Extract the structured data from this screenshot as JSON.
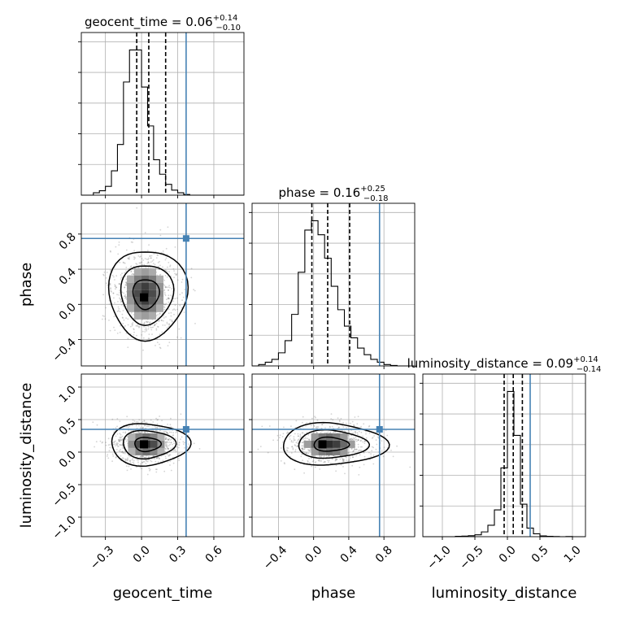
{
  "chart_data": {
    "type": "corner",
    "truth_color": "#4682b4",
    "parameters": [
      {
        "name": "geocent_time",
        "xlim": [
          -0.5,
          0.85
        ],
        "ticks": [
          -0.3,
          0.0,
          0.3,
          0.6
        ],
        "tick_labels": [
          "−0.3",
          "0.0",
          "0.3",
          "0.6"
        ],
        "truth": 0.37,
        "quantiles": [
          -0.04,
          0.06,
          0.2
        ],
        "title": {
          "prefix": "geocent_time = ",
          "value": "0.06",
          "plus": "+0.14",
          "minus": "−0.10"
        },
        "hist_edges": [
          -0.5,
          -0.45,
          -0.4,
          -0.35,
          -0.3,
          -0.25,
          -0.2,
          -0.15,
          -0.1,
          -0.05,
          0.0,
          0.05,
          0.1,
          0.15,
          0.2,
          0.25,
          0.3,
          0.35,
          0.4,
          0.45,
          0.5,
          0.55,
          0.6,
          0.65,
          0.7,
          0.75,
          0.8,
          0.85
        ],
        "hist_counts": [
          0,
          0,
          0.7,
          1.3,
          2.6,
          7.2,
          15,
          33.5,
          43,
          43,
          32,
          20.5,
          10.5,
          6.2,
          3.2,
          1.5,
          0.7,
          0.2,
          0,
          0,
          0,
          0,
          0,
          0,
          0,
          0,
          0
        ]
      },
      {
        "name": "phase",
        "xlim": [
          -0.7,
          1.15
        ],
        "ticks": [
          -0.4,
          0.0,
          0.4,
          0.8
        ],
        "tick_labels": [
          "−0.4",
          "0.0",
          "0.4",
          "0.8"
        ],
        "truth": 0.75,
        "quantiles": [
          -0.02,
          0.16,
          0.41
        ],
        "title": {
          "prefix": "phase = ",
          "value": "0.16",
          "plus": "+0.25",
          "minus": "−0.18"
        },
        "hist_edges": [
          -0.7,
          -0.625,
          -0.55,
          -0.475,
          -0.4,
          -0.325,
          -0.25,
          -0.175,
          -0.1,
          -0.025,
          0.05,
          0.125,
          0.2,
          0.275,
          0.35,
          0.425,
          0.5,
          0.575,
          0.65,
          0.725,
          0.8,
          0.875,
          0.95,
          1.025,
          1.1
        ],
        "hist_counts": [
          0,
          0.3,
          0.8,
          1.4,
          2.8,
          5.4,
          11,
          20,
          29,
          31,
          28,
          23,
          17,
          12,
          8.5,
          6,
          3.8,
          2.4,
          1.4,
          0.8,
          0.3,
          0.1,
          0,
          0
        ]
      },
      {
        "name": "luminosity_distance",
        "xlim": [
          -1.3,
          1.2
        ],
        "ticks": [
          -1.0,
          -0.5,
          0.0,
          0.5,
          1.0
        ],
        "tick_labels": [
          "−1.0",
          "−0.5",
          "0.0",
          "0.5",
          "1.0"
        ],
        "truth": 0.35,
        "quantiles": [
          -0.05,
          0.09,
          0.23
        ],
        "title": {
          "prefix": "luminosity_distance = ",
          "value": "0.09",
          "plus": "+0.14",
          "minus": "−0.14"
        },
        "hist_edges": [
          -1.3,
          -1.2,
          -1.1,
          -1.0,
          -0.9,
          -0.8,
          -0.7,
          -0.6,
          -0.5,
          -0.4,
          -0.3,
          -0.2,
          -0.1,
          0.0,
          0.1,
          0.2,
          0.3,
          0.4,
          0.5,
          0.6,
          0.7,
          0.8,
          0.9,
          1.0,
          1.1,
          1.2
        ],
        "hist_counts": [
          0,
          0,
          0,
          0,
          0,
          0.2,
          0.3,
          0.5,
          1,
          2.5,
          6,
          14,
          36,
          76,
          53,
          17,
          4.5,
          1.5,
          0.4,
          0.2,
          0.1,
          0,
          0.1,
          0,
          0
        ]
      }
    ],
    "pairs": [
      {
        "x": "geocent_time",
        "y": "phase",
        "ylim": [
          -0.7,
          1.15
        ],
        "yticks": [
          -0.4,
          0.0,
          0.4,
          0.8
        ],
        "ytick_labels": [
          "−0.4",
          "0.0",
          "0.4",
          "0.8"
        ],
        "mean": [
          0.03,
          0.12
        ],
        "std": [
          0.12,
          0.22
        ],
        "peak": [
          0.02,
          0.08
        ]
      },
      {
        "x": "geocent_time",
        "y": "luminosity_distance",
        "ylim": [
          -1.3,
          1.2
        ],
        "yticks": [
          -1.0,
          -0.5,
          0.0,
          0.5,
          1.0
        ],
        "ytick_labels": [
          "−1.0",
          "−0.5",
          "0.0",
          "0.5",
          "1.0"
        ],
        "mean": [
          0.04,
          0.12
        ],
        "std": [
          0.12,
          0.14
        ],
        "peak": [
          0.02,
          0.12
        ]
      },
      {
        "x": "phase",
        "y": "luminosity_distance",
        "ylim": [
          -1.3,
          1.2
        ],
        "yticks": [
          -1.0,
          -0.5,
          0.0,
          0.5,
          1.0
        ],
        "ytick_labels": [
          "−1.0",
          "−0.5",
          "0.0",
          "0.5",
          "1.0"
        ],
        "mean": [
          0.18,
          0.12
        ],
        "std": [
          0.22,
          0.14
        ],
        "peak": [
          0.1,
          0.12
        ]
      }
    ],
    "contour_levels": [
      0.393,
      0.865,
      0.989
    ]
  }
}
